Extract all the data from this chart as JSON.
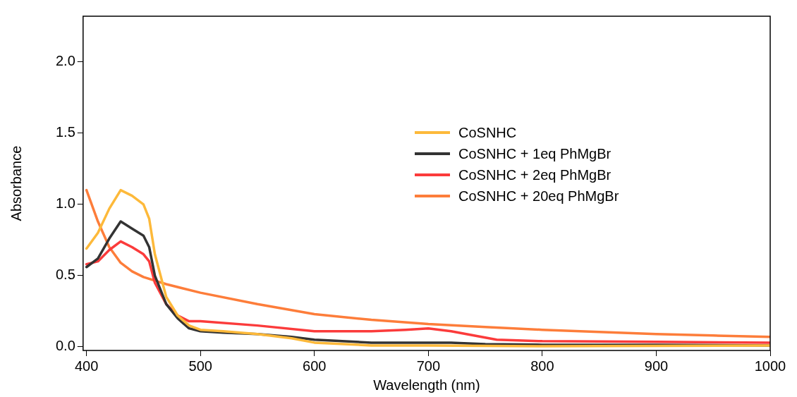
{
  "chart_data": {
    "type": "line",
    "xlabel": "Wavelength (nm)",
    "ylabel": "Absorbance",
    "xlim": [
      397,
      1000
    ],
    "ylim": [
      -0.025,
      2.32
    ],
    "xticks": [
      400,
      500,
      600,
      700,
      800,
      900,
      1000
    ],
    "yticks": [
      {
        "value": 0,
        "label": "0.0"
      },
      {
        "value": 0.5,
        "label": "0.5"
      },
      {
        "value": 1,
        "label": "1.0"
      },
      {
        "value": 1.5,
        "label": "1.5"
      },
      {
        "value": 2,
        "label": "2.0"
      }
    ],
    "grid": false,
    "legend": "right",
    "marker": "none",
    "line_style": "solid",
    "series": [
      {
        "name": "CoSNHC",
        "color": "#fdb93a",
        "x": [
          400,
          410,
          420,
          430,
          440,
          450,
          455,
          460,
          470,
          480,
          490,
          500,
          520,
          550,
          580,
          600,
          650,
          700,
          800,
          1000
        ],
        "values": [
          0.69,
          0.8,
          0.97,
          1.1,
          1.06,
          1.0,
          0.9,
          0.65,
          0.35,
          0.22,
          0.15,
          0.12,
          0.11,
          0.09,
          0.06,
          0.03,
          0.01,
          0.01,
          0.005,
          0.01
        ]
      },
      {
        "name": "CoSNHC + 1eq PhMgBr",
        "color": "#333333",
        "x": [
          400,
          410,
          420,
          430,
          440,
          450,
          455,
          460,
          470,
          480,
          490,
          500,
          520,
          550,
          580,
          600,
          650,
          700,
          720,
          750,
          800,
          900,
          1000
        ],
        "values": [
          0.56,
          0.62,
          0.76,
          0.88,
          0.83,
          0.78,
          0.7,
          0.5,
          0.3,
          0.2,
          0.13,
          0.11,
          0.1,
          0.09,
          0.07,
          0.05,
          0.03,
          0.03,
          0.03,
          0.02,
          0.015,
          0.015,
          0.01
        ]
      },
      {
        "name": "CoSNHC + 2eq PhMgBr",
        "color": "#fb3b3b",
        "x": [
          400,
          410,
          420,
          430,
          440,
          450,
          455,
          460,
          470,
          480,
          490,
          500,
          550,
          600,
          650,
          680,
          700,
          720,
          740,
          760,
          800,
          900,
          1000
        ],
        "values": [
          0.58,
          0.6,
          0.68,
          0.74,
          0.7,
          0.65,
          0.6,
          0.45,
          0.3,
          0.22,
          0.18,
          0.18,
          0.15,
          0.11,
          0.11,
          0.12,
          0.13,
          0.11,
          0.08,
          0.05,
          0.04,
          0.035,
          0.03
        ]
      },
      {
        "name": "CoSNHC + 20eq PhMgBr",
        "color": "#fd7d3a",
        "x": [
          400,
          410,
          420,
          430,
          440,
          450,
          470,
          500,
          550,
          600,
          650,
          700,
          750,
          800,
          850,
          900,
          950,
          1000
        ],
        "values": [
          1.1,
          0.88,
          0.7,
          0.59,
          0.53,
          0.49,
          0.44,
          0.38,
          0.3,
          0.23,
          0.19,
          0.16,
          0.14,
          0.12,
          0.105,
          0.09,
          0.08,
          0.07
        ]
      }
    ]
  }
}
